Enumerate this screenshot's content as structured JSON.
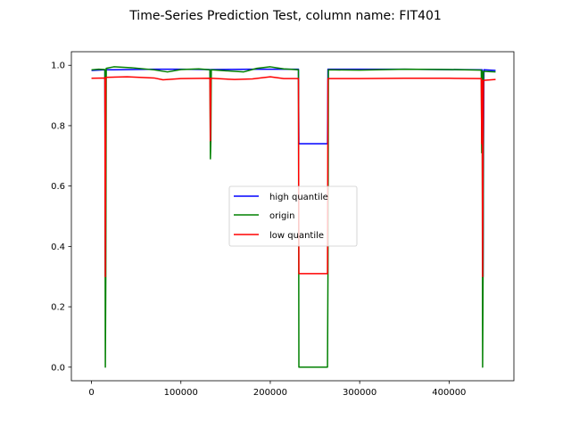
{
  "chart_data": {
    "type": "line",
    "title": "Time-Series Prediction Test, column name: FIT401",
    "xlabel": "",
    "ylabel": "",
    "xlim": [
      -22500,
      472500
    ],
    "ylim": [
      -0.045,
      1.045
    ],
    "xticks": [
      0,
      100000,
      200000,
      300000,
      400000
    ],
    "yticks": [
      0.0,
      0.2,
      0.4,
      0.6,
      0.8,
      1.0
    ],
    "xtick_labels": [
      "0",
      "100000",
      "200000",
      "300000",
      "400000"
    ],
    "ytick_labels": [
      "0.0",
      "0.2",
      "0.4",
      "0.6",
      "0.8",
      "1.0"
    ],
    "grid": false,
    "legend_position": "center",
    "series": [
      {
        "name": "high quantile",
        "color": "#0000ff",
        "points": [
          [
            0,
            0.983
          ],
          [
            15000,
            0.985
          ],
          [
            15500,
            0.3
          ],
          [
            16000,
            0.985
          ],
          [
            70000,
            0.987
          ],
          [
            100000,
            0.987
          ],
          [
            132500,
            0.986
          ],
          [
            133000,
            0.9
          ],
          [
            133500,
            0.986
          ],
          [
            180000,
            0.987
          ],
          [
            231500,
            0.987
          ],
          [
            232000,
            0.74
          ],
          [
            264000,
            0.74
          ],
          [
            264500,
            0.987
          ],
          [
            350000,
            0.987
          ],
          [
            437000,
            0.985
          ],
          [
            437500,
            0.72
          ],
          [
            438000,
            0.3
          ],
          [
            438500,
            0.72
          ],
          [
            439000,
            0.985
          ],
          [
            452000,
            0.983
          ]
        ]
      },
      {
        "name": "origin",
        "color": "#008000",
        "points": [
          [
            0,
            0.985
          ],
          [
            8000,
            0.987
          ],
          [
            15000,
            0.986
          ],
          [
            15500,
            0.0
          ],
          [
            16000,
            0.3
          ],
          [
            16500,
            0.99
          ],
          [
            25000,
            0.995
          ],
          [
            45000,
            0.992
          ],
          [
            70000,
            0.985
          ],
          [
            85000,
            0.978
          ],
          [
            100000,
            0.986
          ],
          [
            120000,
            0.988
          ],
          [
            132500,
            0.985
          ],
          [
            133000,
            0.69
          ],
          [
            133500,
            0.75
          ],
          [
            134000,
            0.985
          ],
          [
            150000,
            0.982
          ],
          [
            170000,
            0.978
          ],
          [
            185000,
            0.99
          ],
          [
            200000,
            0.995
          ],
          [
            215000,
            0.988
          ],
          [
            231500,
            0.985
          ],
          [
            232000,
            0.0
          ],
          [
            264000,
            0.0
          ],
          [
            264500,
            0.3
          ],
          [
            265000,
            0.985
          ],
          [
            300000,
            0.984
          ],
          [
            350000,
            0.987
          ],
          [
            400000,
            0.986
          ],
          [
            436000,
            0.984
          ],
          [
            436500,
            0.71
          ],
          [
            437000,
            0.98
          ],
          [
            437500,
            0.0
          ],
          [
            438000,
            0.3
          ],
          [
            438500,
            0.98
          ],
          [
            452000,
            0.978
          ]
        ]
      },
      {
        "name": "low quantile",
        "color": "#ff0000",
        "points": [
          [
            0,
            0.957
          ],
          [
            15000,
            0.958
          ],
          [
            15500,
            0.3
          ],
          [
            16000,
            0.96
          ],
          [
            40000,
            0.962
          ],
          [
            70000,
            0.958
          ],
          [
            80000,
            0.952
          ],
          [
            100000,
            0.956
          ],
          [
            132500,
            0.957
          ],
          [
            133000,
            0.75
          ],
          [
            133500,
            0.957
          ],
          [
            160000,
            0.953
          ],
          [
            180000,
            0.955
          ],
          [
            200000,
            0.962
          ],
          [
            215000,
            0.956
          ],
          [
            231500,
            0.956
          ],
          [
            232000,
            0.31
          ],
          [
            264000,
            0.31
          ],
          [
            264500,
            0.956
          ],
          [
            300000,
            0.956
          ],
          [
            350000,
            0.957
          ],
          [
            400000,
            0.957
          ],
          [
            436000,
            0.956
          ],
          [
            436500,
            0.74
          ],
          [
            437000,
            0.95
          ],
          [
            437500,
            0.3
          ],
          [
            438000,
            0.74
          ],
          [
            438500,
            0.95
          ],
          [
            452000,
            0.953
          ]
        ]
      }
    ]
  }
}
